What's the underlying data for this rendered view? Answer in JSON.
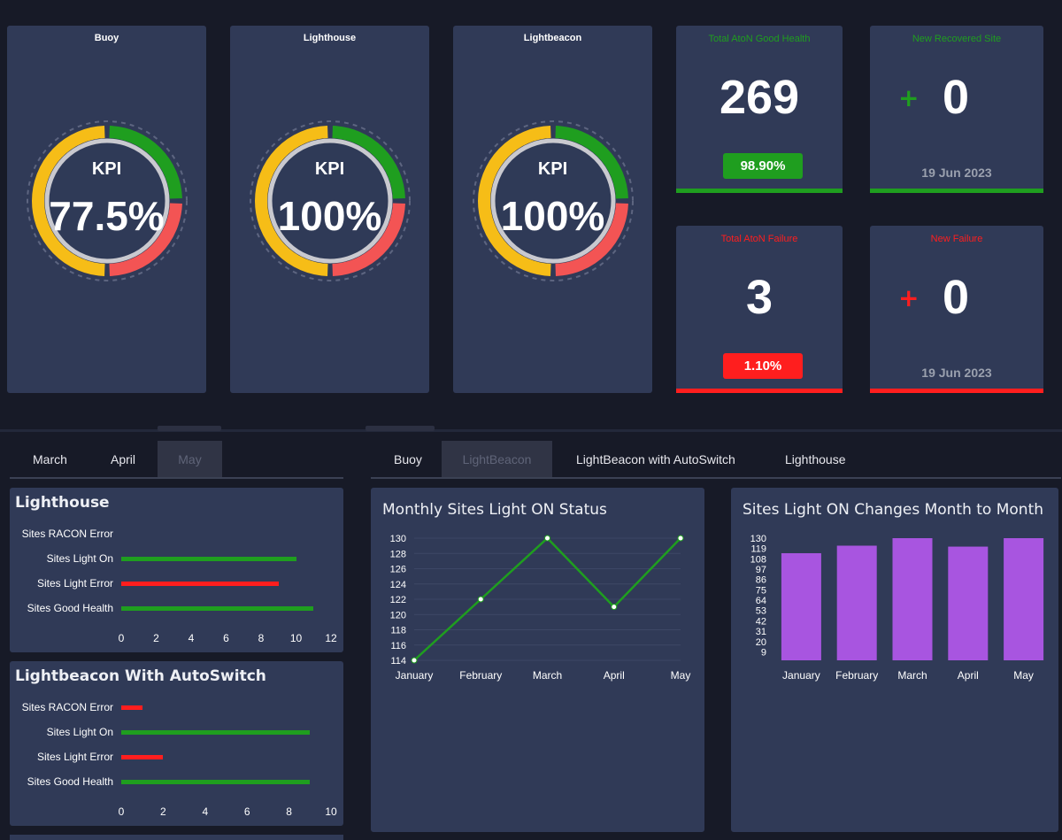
{
  "kpis": [
    {
      "title": "Buoy",
      "label": "KPI",
      "value": "77.5%"
    },
    {
      "title": "Lighthouse",
      "label": "KPI",
      "value": "100%"
    },
    {
      "title": "Lightbeacon",
      "label": "KPI",
      "value": "100%"
    }
  ],
  "stats": {
    "good_health": {
      "title": "Total AtoN Good Health",
      "value": "269",
      "percent": "98.90%"
    },
    "new_recovered": {
      "title": "New Recovered Site",
      "sign": "+",
      "value": "0",
      "date": "19 Jun 2023"
    },
    "failure": {
      "title": "Total AtoN Failure",
      "value": "3",
      "percent": "1.10%"
    },
    "new_failure": {
      "title": "New Failure",
      "sign": "+",
      "value": "0",
      "date": "19 Jun 2023"
    }
  },
  "month_tabs": [
    "March",
    "April",
    "May"
  ],
  "type_tabs": [
    "Buoy",
    "LightBeacon",
    "LightBeacon with AutoSwitch",
    "Lighthouse"
  ],
  "colors": {
    "green": "#1f9e1f",
    "red": "#ff1e1e",
    "yellow": "#f6bd17",
    "purple": "#a855e0",
    "panel": "#303a57"
  },
  "hbar_charts": [
    {
      "title": "Lighthouse",
      "labels": [
        "Sites RACON Error",
        "Sites Light On",
        "Sites Light Error",
        "Sites Good Health"
      ],
      "values": [
        0,
        10,
        9,
        11
      ],
      "ticks": [
        "0",
        "2",
        "4",
        "6",
        "8",
        "10",
        "12"
      ],
      "max": 12
    },
    {
      "title": "Lightbeacon With AutoSwitch",
      "labels": [
        "Sites RACON Error",
        "Sites Light On",
        "Sites Light Error",
        "Sites Good Health"
      ],
      "values": [
        1,
        9,
        2,
        9
      ],
      "ticks": [
        "0",
        "2",
        "4",
        "6",
        "8",
        "10"
      ],
      "max": 10
    }
  ],
  "chart_data": [
    {
      "type": "line",
      "title": "Monthly Sites Light ON Status",
      "categories": [
        "January",
        "February",
        "March",
        "April",
        "May"
      ],
      "values": [
        114,
        122,
        130,
        121,
        130
      ],
      "yticks": [
        "130",
        "128",
        "126",
        "124",
        "122",
        "120",
        "118",
        "116",
        "114"
      ],
      "ylim": [
        114,
        130
      ]
    },
    {
      "type": "bar",
      "title": "Sites Light ON Changes Month to Month",
      "categories": [
        "January",
        "February",
        "March",
        "April",
        "May"
      ],
      "values": [
        114,
        122,
        130,
        121,
        130
      ],
      "yticks": [
        "130",
        "119",
        "108",
        "97",
        "86",
        "75",
        "64",
        "53",
        "42",
        "31",
        "20",
        "9"
      ],
      "ylim": [
        0,
        130
      ]
    }
  ]
}
